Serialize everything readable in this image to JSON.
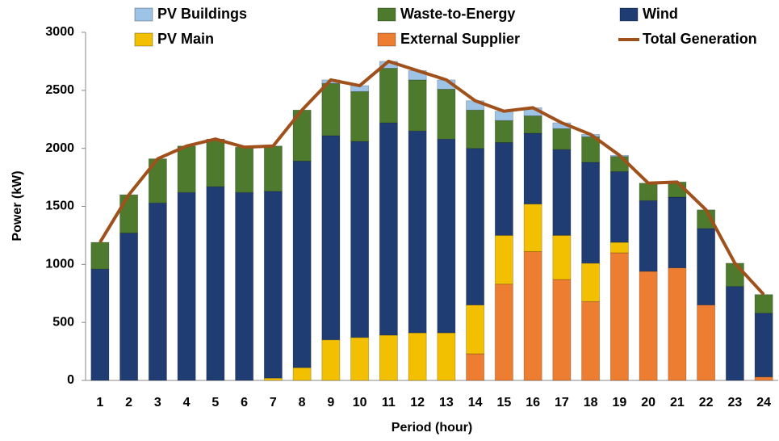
{
  "chart_data": {
    "type": "bar",
    "stacked": true,
    "x_label": "Period (hour)",
    "y_label": "Power (kW)",
    "categories": [
      "1",
      "2",
      "3",
      "4",
      "5",
      "6",
      "7",
      "8",
      "9",
      "10",
      "11",
      "12",
      "13",
      "14",
      "15",
      "16",
      "17",
      "18",
      "19",
      "20",
      "21",
      "22",
      "23",
      "24"
    ],
    "series": [
      {
        "name": "PV Buildings",
        "color": "#9dc3e6",
        "values": [
          0,
          0,
          0,
          0,
          0,
          0,
          0,
          0,
          30,
          50,
          60,
          80,
          80,
          80,
          80,
          70,
          50,
          20,
          10,
          0,
          0,
          0,
          0,
          0
        ]
      },
      {
        "name": "Waste-to-Energy",
        "color": "#4e7a2e",
        "values": [
          230,
          330,
          380,
          400,
          410,
          390,
          390,
          440,
          450,
          430,
          470,
          440,
          430,
          330,
          190,
          150,
          180,
          220,
          130,
          150,
          130,
          160,
          200,
          160
        ]
      },
      {
        "name": "Wind",
        "color": "#1f3c73",
        "values": [
          960,
          1270,
          1530,
          1620,
          1670,
          1620,
          1610,
          1780,
          1760,
          1690,
          1830,
          1740,
          1670,
          1350,
          800,
          610,
          740,
          870,
          610,
          610,
          610,
          660,
          810,
          550
        ]
      },
      {
        "name": "PV Main",
        "color": "#f2c000",
        "values": [
          0,
          0,
          0,
          0,
          0,
          0,
          20,
          110,
          350,
          370,
          390,
          410,
          410,
          420,
          420,
          410,
          380,
          330,
          90,
          0,
          0,
          0,
          0,
          0
        ]
      },
      {
        "name": "External Supplier",
        "color": "#ed7d31",
        "values": [
          0,
          0,
          0,
          0,
          0,
          0,
          0,
          0,
          0,
          0,
          0,
          0,
          0,
          230,
          830,
          1110,
          870,
          680,
          1100,
          940,
          970,
          650,
          0,
          30
        ]
      },
      {
        "name": "Total Generation",
        "color": "#a0501a",
        "type": "line",
        "values": [
          1190,
          1600,
          1910,
          2020,
          2080,
          2010,
          2020,
          2330,
          2590,
          2540,
          2750,
          2670,
          2590,
          2410,
          2320,
          2350,
          2220,
          2120,
          1940,
          1700,
          1710,
          1470,
          1010,
          740
        ]
      }
    ],
    "stack_order": [
      "External Supplier",
      "PV Main",
      "Wind",
      "Waste-to-Energy",
      "PV Buildings"
    ],
    "ylim": [
      0,
      3000
    ],
    "yticks": [
      0,
      500,
      1000,
      1500,
      2000,
      2500,
      3000
    ],
    "grid": false,
    "legend": "top"
  }
}
